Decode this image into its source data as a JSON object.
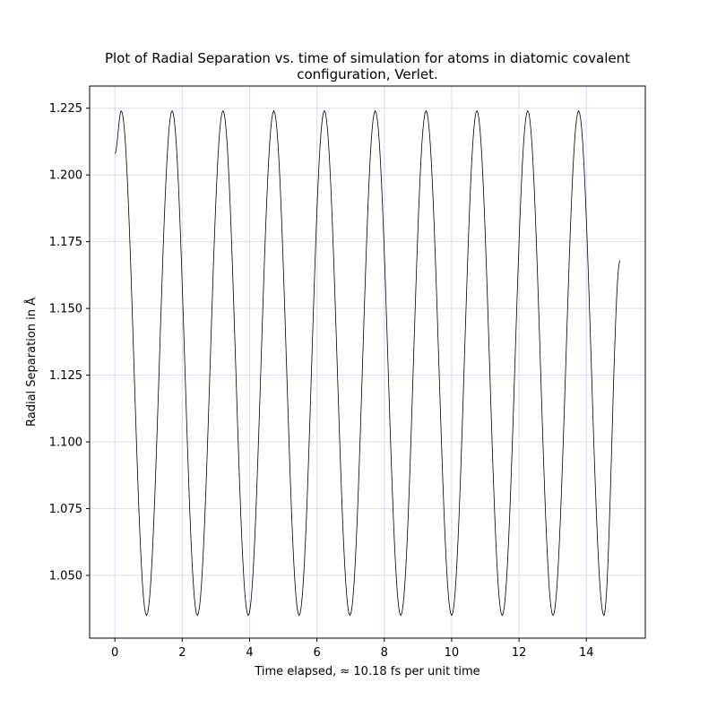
{
  "chart_data": {
    "type": "line",
    "title_line1": "Plot of Radial Separation vs. time of simulation for atoms in diatomic covalent",
    "title_line2": "configuration, Verlet.",
    "xlabel": "Time elapsed,  ≈ 10.18 fs per unit time",
    "ylabel": "Radial Separation in Å",
    "xlim": [
      -0.75,
      15.75
    ],
    "ylim": [
      1.0265,
      1.2333
    ],
    "x_ticks": [
      0,
      2,
      4,
      6,
      8,
      10,
      12,
      14
    ],
    "x_tick_labels": [
      "0",
      "2",
      "4",
      "6",
      "8",
      "10",
      "12",
      "14"
    ],
    "y_ticks": [
      1.05,
      1.075,
      1.1,
      1.125,
      1.15,
      1.175,
      1.2,
      1.225
    ],
    "y_tick_labels": [
      "1.050",
      "1.075",
      "1.100",
      "1.125",
      "1.150",
      "1.175",
      "1.200",
      "1.225"
    ],
    "grid": true,
    "series": [
      {
        "color": "#000000",
        "x": [
          0,
          0.19,
          0.94,
          1.7,
          2.45,
          3.21,
          3.96,
          4.72,
          5.47,
          6.22,
          6.98,
          7.73,
          8.49,
          9.24,
          10.0,
          10.75,
          11.5,
          12.26,
          13.01,
          13.77,
          14.52,
          15.0
        ],
        "y": [
          1.208,
          1.224,
          1.035,
          1.224,
          1.035,
          1.224,
          1.035,
          1.224,
          1.035,
          1.224,
          1.035,
          1.224,
          1.035,
          1.224,
          1.035,
          1.224,
          1.035,
          1.224,
          1.035,
          1.224,
          1.035,
          1.168
        ]
      }
    ]
  },
  "colors": {
    "line": "#000000",
    "grid": "#ddddf5",
    "axes": "#000000",
    "background": "#ffffff"
  }
}
